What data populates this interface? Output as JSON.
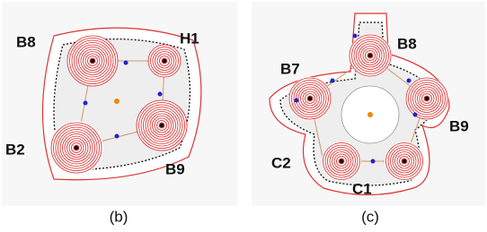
{
  "panels": [
    {
      "caption": "(b)",
      "labels": [
        "B8",
        "H1",
        "B2",
        "B9"
      ]
    },
    {
      "caption": "(c)",
      "labels": [
        "B8",
        "B7",
        "B9",
        "C2",
        "C1"
      ]
    }
  ]
}
